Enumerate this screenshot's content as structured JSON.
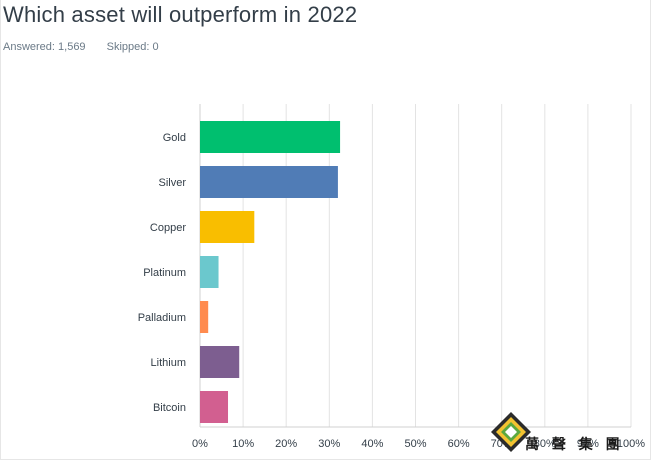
{
  "survey": {
    "title": "Which asset will outperform in 2022",
    "answered": "Answered: 1,569",
    "skipped": "Skipped: 0"
  },
  "chart_data": {
    "type": "bar",
    "orientation": "horizontal",
    "title": "Which asset will outperform in 2022",
    "categories": [
      "Gold",
      "Silver",
      "Copper",
      "Platinum",
      "Palladium",
      "Lithium",
      "Bitcoin"
    ],
    "values": [
      32.5,
      32.0,
      12.6,
      4.3,
      1.9,
      9.1,
      6.5
    ],
    "colors": [
      "#00bf6f",
      "#507cb6",
      "#f9be00",
      "#6bc8cd",
      "#ff8b4f",
      "#7d5e90",
      "#d25f90"
    ],
    "xlim": [
      0,
      100
    ],
    "xticks": [
      "0%",
      "10%",
      "20%",
      "30%",
      "40%",
      "50%",
      "60%",
      "70%",
      "80%",
      "90%",
      "100%"
    ],
    "grid": true,
    "xlabel": "",
    "ylabel": ""
  },
  "watermark": {
    "text": "萬 聲 集 團",
    "icon": "diamond-logo-icon"
  }
}
